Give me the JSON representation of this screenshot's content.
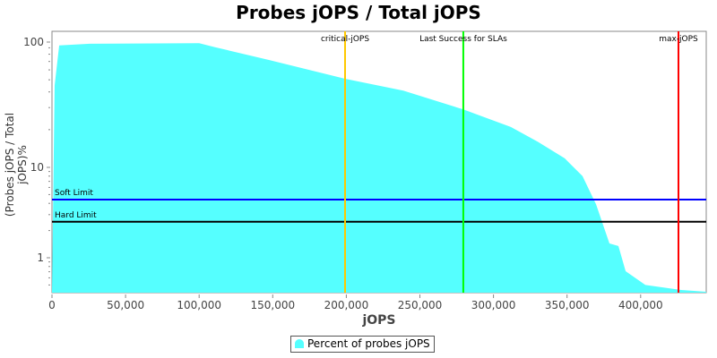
{
  "chart_data": {
    "type": "area",
    "title": "Probes jOPS / Total jOPS",
    "xlabel": "jOPS",
    "ylabel": "(Probes jOPS / Total jOPS)%",
    "yscale": "log",
    "xlim": [
      0,
      444600
    ],
    "ylim": [
      0.41,
      122
    ],
    "x_ticks": [
      0,
      50000,
      100000,
      150000,
      200000,
      250000,
      300000,
      350000,
      400000
    ],
    "x_tick_labels": [
      "0",
      "50,000",
      "100,000",
      "150,000",
      "200,000",
      "250,000",
      "300,000",
      "350,000",
      "400,000"
    ],
    "y_ticks": [
      100,
      10,
      1
    ],
    "y_tick_labels": [
      "100",
      "10",
      "1"
    ],
    "series": [
      {
        "name": "Percent of probes jOPS",
        "color": "#55ffff",
        "x": [
          0,
          1800,
          4900,
          25600,
          100000,
          110800,
          147400,
          199100,
          238700,
          279500,
          311800,
          330100,
          348400,
          360500,
          369700,
          378800,
          384900,
          389800,
          403200,
          427500,
          444600
        ],
        "y": [
          0.41,
          45,
          94,
          97,
          98,
          91,
          72,
          51,
          41,
          29,
          21,
          16,
          11.8,
          8,
          3.9,
          1.44,
          1.35,
          0.71,
          0.5,
          0.44,
          0.42
        ]
      }
    ],
    "vertical_markers": [
      {
        "label": "critical-jOPS",
        "x": 199150,
        "color": "#ffc800"
      },
      {
        "label": "Last Success for SLAs",
        "x": 279500,
        "color": "#00ff00"
      },
      {
        "label": "max-jOPS",
        "x": 425700,
        "color": "#ff0000"
      }
    ],
    "horizontal_markers": [
      {
        "label": "Soft Limit",
        "y": 4.4,
        "color": "#0000ff"
      },
      {
        "label": "Hard Limit",
        "y": 2.5,
        "color": "#000000"
      }
    ],
    "legend": "bottom-center"
  }
}
